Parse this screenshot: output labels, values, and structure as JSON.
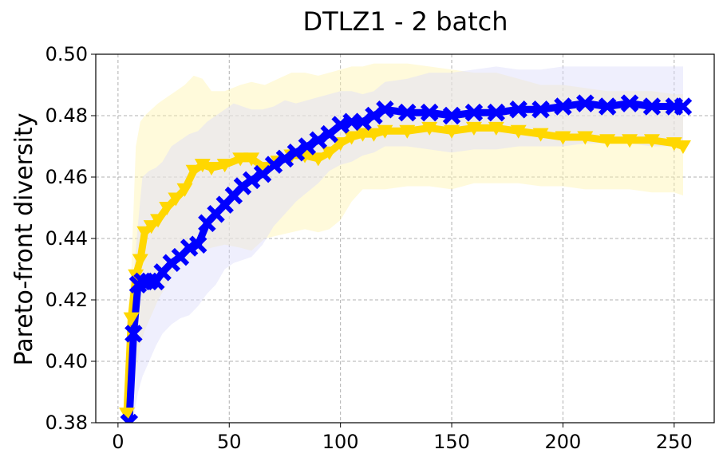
{
  "chart_data": {
    "type": "line",
    "title": "DTLZ1 - 2 batch",
    "xlabel": "",
    "ylabel": "Pareto-front diversity",
    "xlim": [
      -10,
      268
    ],
    "ylim": [
      0.38,
      0.5
    ],
    "xticks": [
      0,
      50,
      100,
      150,
      200,
      250
    ],
    "xtick_labels": [
      "0",
      "50",
      "100",
      "150",
      "200",
      "250"
    ],
    "yticks": [
      0.38,
      0.4,
      0.42,
      0.44,
      0.46,
      0.48,
      0.5
    ],
    "ytick_labels": [
      "0.38",
      "0.40",
      "0.42",
      "0.44",
      "0.46",
      "0.48",
      "0.50"
    ],
    "grid": true,
    "legend": "none",
    "series": [
      {
        "color": "#ffd700",
        "band_color": "#fff3b0",
        "marker": "triangle-down",
        "x": [
          4,
          6,
          8,
          10,
          12,
          15,
          18,
          22,
          26,
          30,
          34,
          38,
          42,
          48,
          55,
          60,
          66,
          72,
          78,
          84,
          90,
          95,
          100,
          105,
          110,
          115,
          120,
          130,
          140,
          150,
          160,
          170,
          180,
          190,
          200,
          210,
          220,
          230,
          240,
          250,
          254
        ],
        "y": [
          0.383,
          0.414,
          0.428,
          0.433,
          0.442,
          0.444,
          0.446,
          0.45,
          0.453,
          0.456,
          0.462,
          0.464,
          0.463,
          0.464,
          0.466,
          0.466,
          0.463,
          0.465,
          0.467,
          0.467,
          0.466,
          0.468,
          0.471,
          0.473,
          0.474,
          0.474,
          0.475,
          0.475,
          0.476,
          0.475,
          0.476,
          0.476,
          0.475,
          0.474,
          0.473,
          0.473,
          0.472,
          0.472,
          0.472,
          0.471,
          0.47
        ],
        "upper": [
          0.413,
          0.43,
          0.47,
          0.478,
          0.48,
          0.482,
          0.484,
          0.486,
          0.488,
          0.49,
          0.493,
          0.492,
          0.488,
          0.488,
          0.49,
          0.491,
          0.49,
          0.492,
          0.494,
          0.494,
          0.493,
          0.494,
          0.495,
          0.496,
          0.496,
          0.497,
          0.497,
          0.497,
          0.496,
          0.495,
          0.494,
          0.494,
          0.492,
          0.49,
          0.49,
          0.489,
          0.488,
          0.488,
          0.488,
          0.487,
          0.487
        ],
        "lower": [
          0.38,
          0.38,
          0.395,
          0.405,
          0.41,
          0.415,
          0.42,
          0.425,
          0.43,
          0.432,
          0.434,
          0.436,
          0.437,
          0.438,
          0.437,
          0.436,
          0.44,
          0.441,
          0.442,
          0.443,
          0.442,
          0.443,
          0.446,
          0.452,
          0.456,
          0.456,
          0.456,
          0.457,
          0.457,
          0.456,
          0.458,
          0.458,
          0.458,
          0.457,
          0.457,
          0.456,
          0.456,
          0.456,
          0.455,
          0.455,
          0.454
        ]
      },
      {
        "color": "#0000ff",
        "band_color": "#dcdcfa",
        "marker": "x",
        "x": [
          5,
          7,
          9,
          11,
          14,
          17,
          20,
          24,
          28,
          32,
          36,
          40,
          44,
          48,
          52,
          56,
          60,
          65,
          70,
          75,
          80,
          85,
          90,
          95,
          100,
          105,
          110,
          115,
          120,
          130,
          140,
          150,
          160,
          170,
          180,
          190,
          200,
          210,
          220,
          230,
          240,
          250,
          254
        ],
        "y": [
          0.38,
          0.409,
          0.425,
          0.426,
          0.426,
          0.426,
          0.429,
          0.432,
          0.434,
          0.437,
          0.438,
          0.445,
          0.448,
          0.451,
          0.454,
          0.457,
          0.459,
          0.461,
          0.464,
          0.466,
          0.468,
          0.47,
          0.472,
          0.474,
          0.477,
          0.478,
          0.478,
          0.48,
          0.482,
          0.481,
          0.481,
          0.48,
          0.481,
          0.481,
          0.482,
          0.482,
          0.483,
          0.484,
          0.483,
          0.484,
          0.483,
          0.483,
          0.483
        ],
        "upper": [
          0.385,
          0.428,
          0.445,
          0.46,
          0.462,
          0.463,
          0.465,
          0.47,
          0.472,
          0.474,
          0.475,
          0.478,
          0.48,
          0.482,
          0.484,
          0.483,
          0.482,
          0.482,
          0.483,
          0.485,
          0.484,
          0.485,
          0.486,
          0.487,
          0.488,
          0.488,
          0.487,
          0.488,
          0.491,
          0.492,
          0.494,
          0.494,
          0.495,
          0.496,
          0.495,
          0.495,
          0.496,
          0.496,
          0.496,
          0.496,
          0.496,
          0.496,
          0.496
        ]
      }
    ],
    "band_lower_blue": [
      0.38,
      0.382,
      0.39,
      0.395,
      0.4,
      0.405,
      0.409,
      0.412,
      0.414,
      0.415,
      0.418,
      0.422,
      0.425,
      0.43,
      0.432,
      0.433,
      0.434,
      0.438,
      0.444,
      0.448,
      0.452,
      0.455,
      0.458,
      0.462,
      0.464,
      0.465,
      0.467,
      0.468,
      0.47,
      0.47,
      0.469,
      0.468,
      0.469,
      0.469,
      0.47,
      0.47,
      0.47,
      0.471,
      0.471,
      0.471,
      0.47,
      0.47,
      0.47
    ]
  }
}
